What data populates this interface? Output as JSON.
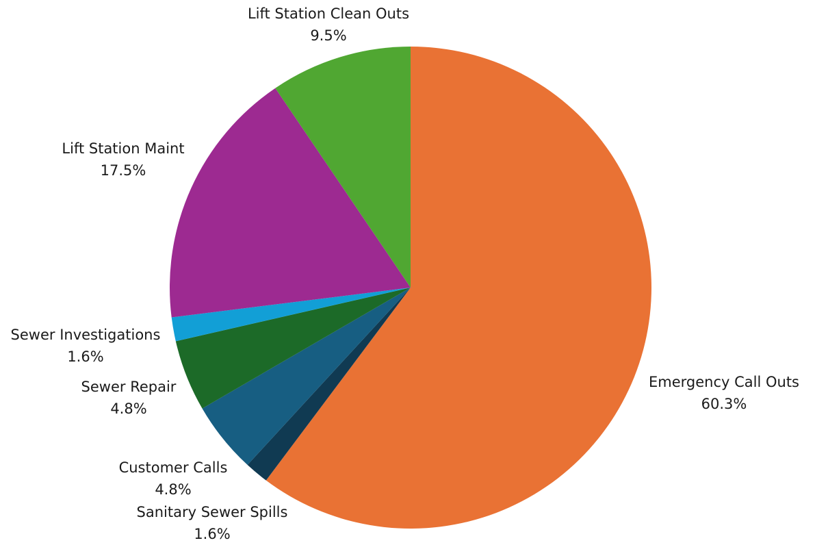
{
  "chart_data": {
    "type": "pie",
    "title": "",
    "start_angle_deg": 0,
    "direction": "clockwise",
    "slices": [
      {
        "label": "Emergency Call Outs",
        "value": 60.3,
        "value_label": "60.3%",
        "color": "#E97234"
      },
      {
        "label": "Sanitary Sewer Spills",
        "value": 1.6,
        "value_label": "1.6%",
        "color": "#103A52"
      },
      {
        "label": "Customer Calls",
        "value": 4.8,
        "value_label": "4.8%",
        "color": "#175E82"
      },
      {
        "label": "Sewer Repair",
        "value": 4.8,
        "value_label": "4.8%",
        "color": "#1C6A28"
      },
      {
        "label": "Sewer Investigations",
        "value": 1.6,
        "value_label": "1.6%",
        "color": "#129FD6"
      },
      {
        "label": "Lift Station Maint",
        "value": 17.5,
        "value_label": "17.5%",
        "color": "#9D2A91"
      },
      {
        "label": "Lift Station Clean Outs",
        "value": 9.5,
        "value_label": "9.5%",
        "color": "#50A732"
      }
    ]
  }
}
